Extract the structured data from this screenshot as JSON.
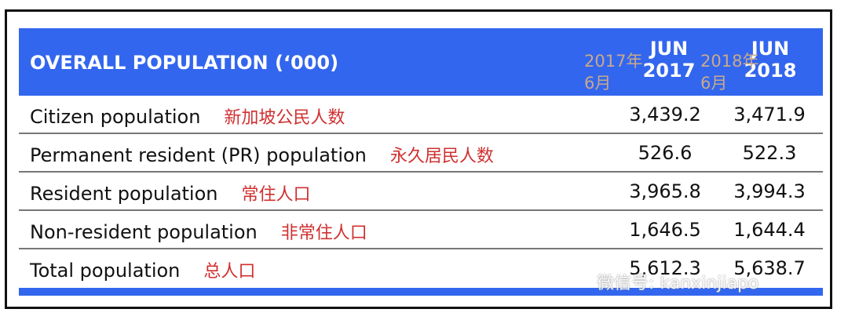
{
  "header": {
    "title": "OVERALL POPULATION  (‘000)",
    "col1": [
      "JUN",
      "2017"
    ],
    "col2": [
      "JUN",
      "2018"
    ],
    "col1_cn": [
      "2017年",
      "6月"
    ],
    "col2_cn": [
      "2018年",
      "6月"
    ]
  },
  "rows": [
    {
      "label": "Citizen population",
      "cn": "新加坡公民人数",
      "v2017": "3,439.2",
      "v2018": "3,471.9"
    },
    {
      "label": "Permanent resident (PR) population",
      "cn": "永久居民人数",
      "v2017": "526.6",
      "v2018": "522.3"
    },
    {
      "label": "Resident population",
      "cn": "常住人口",
      "v2017": "3,965.8",
      "v2018": "3,994.3"
    },
    {
      "label": "Non-resident population",
      "cn": "非常住人口",
      "v2017": "1,646.5",
      "v2018": "1,644.4"
    },
    {
      "label": "Total population",
      "cn": "总人口",
      "v2017": "5,612.3",
      "v2018": "5,638.7"
    }
  ],
  "watermark": "微信号: kanxinjiapo",
  "colors": {
    "header": "#3366ee",
    "chinese": "#d03030"
  }
}
